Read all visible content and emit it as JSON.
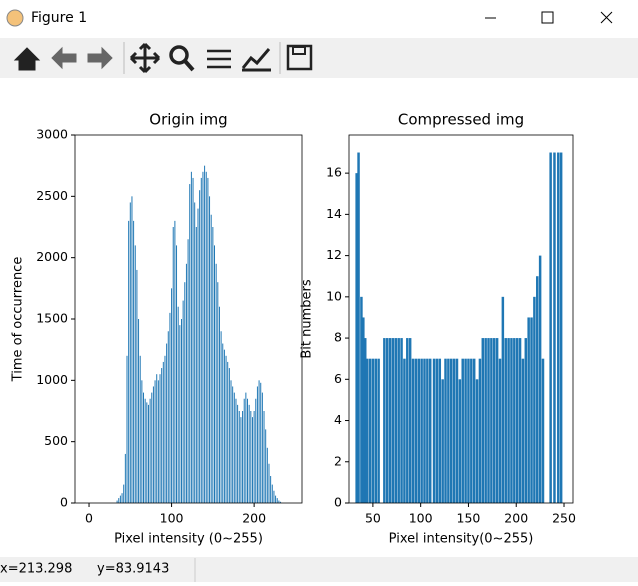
{
  "window": {
    "title": "Figure 1",
    "status_x": "x=213.298",
    "status_y": "y=83.9143"
  },
  "chart_data": [
    {
      "type": "bar",
      "title": "Origin img",
      "x_label": "Pixel intensity (0~255)",
      "y_label": "Time of occurrence",
      "color": "#1f77b4",
      "x": [
        34,
        36,
        38,
        40,
        42,
        44,
        46,
        48,
        50,
        52,
        54,
        56,
        58,
        60,
        62,
        64,
        66,
        68,
        70,
        72,
        74,
        76,
        78,
        80,
        82,
        84,
        86,
        88,
        90,
        92,
        94,
        96,
        98,
        100,
        102,
        104,
        106,
        108,
        110,
        112,
        114,
        116,
        118,
        120,
        122,
        124,
        126,
        128,
        130,
        132,
        134,
        136,
        138,
        140,
        142,
        144,
        146,
        148,
        150,
        152,
        154,
        156,
        158,
        160,
        162,
        164,
        166,
        168,
        170,
        172,
        174,
        176,
        178,
        180,
        182,
        184,
        186,
        188,
        190,
        192,
        194,
        196,
        198,
        200,
        202,
        204,
        206,
        208,
        210,
        212,
        214,
        216,
        218,
        220,
        222,
        224,
        226,
        228,
        230,
        232
      ],
      "values": [
        20,
        40,
        60,
        80,
        150,
        400,
        1200,
        2300,
        2450,
        2500,
        2300,
        2100,
        1900,
        1500,
        1200,
        1000,
        900,
        850,
        820,
        800,
        850,
        900,
        950,
        1000,
        1050,
        1000,
        1050,
        1100,
        1150,
        1200,
        1300,
        1400,
        1550,
        1750,
        2250,
        2300,
        2100,
        1600,
        1450,
        1500,
        1650,
        1800,
        1950,
        2150,
        2600,
        2700,
        2650,
        2450,
        2250,
        2400,
        2550,
        2650,
        2700,
        2750,
        2700,
        2650,
        2500,
        2350,
        2250,
        2100,
        1950,
        1800,
        1600,
        1400,
        1300,
        1250,
        1200,
        1150,
        1100,
        1000,
        950,
        900,
        850,
        800,
        750,
        700,
        750,
        850,
        900,
        850,
        800,
        750,
        700,
        750,
        850,
        950,
        1000,
        980,
        900,
        750,
        600,
        450,
        320,
        220,
        150,
        100,
        60,
        40,
        20,
        10
      ],
      "xlim": [
        -17,
        258
      ],
      "xticks": [
        0,
        100,
        200
      ],
      "ylim": [
        0,
        3000
      ],
      "yticks": [
        0,
        500,
        1000,
        1500,
        2000,
        2500,
        3000
      ]
    },
    {
      "type": "bar",
      "title": "Compressed img",
      "x_label": "Pixel intensity(0~255)",
      "y_label": "Bit numbers",
      "color": "#1f77b4",
      "x": [
        33,
        35,
        38,
        40,
        42,
        44,
        47,
        50,
        53,
        56,
        62,
        65,
        68,
        71,
        74,
        77,
        80,
        83,
        86,
        89,
        92,
        95,
        98,
        101,
        104,
        107,
        110,
        114,
        117,
        120,
        123,
        126,
        129,
        132,
        135,
        138,
        141,
        144,
        147,
        150,
        153,
        156,
        159,
        162,
        165,
        168,
        171,
        174,
        177,
        180,
        183,
        186,
        189,
        192,
        195,
        198,
        201,
        204,
        207,
        210,
        213,
        216,
        219,
        222,
        225,
        228,
        236,
        240,
        244,
        247
      ],
      "values": [
        16,
        17,
        10,
        9,
        8,
        7,
        7,
        7,
        7,
        7,
        8,
        8,
        8,
        8,
        8,
        8,
        8,
        7,
        8,
        8,
        7,
        7,
        7,
        7,
        7,
        7,
        7,
        7,
        7,
        7,
        6,
        7,
        7,
        7,
        7,
        7,
        6,
        7,
        7,
        7,
        7,
        7,
        6,
        7,
        8,
        8,
        8,
        8,
        8,
        8,
        7,
        10,
        8,
        8,
        8,
        8,
        8,
        8,
        7,
        8,
        9,
        9,
        10,
        11,
        12,
        7,
        17,
        17,
        17,
        17
      ],
      "xlim": [
        25,
        259.4
      ],
      "xticks": [
        50,
        100,
        150,
        200,
        250
      ],
      "ylim": [
        0,
        17.85
      ],
      "yticks": [
        0,
        2,
        4,
        6,
        8,
        10,
        12,
        14,
        16
      ]
    }
  ]
}
